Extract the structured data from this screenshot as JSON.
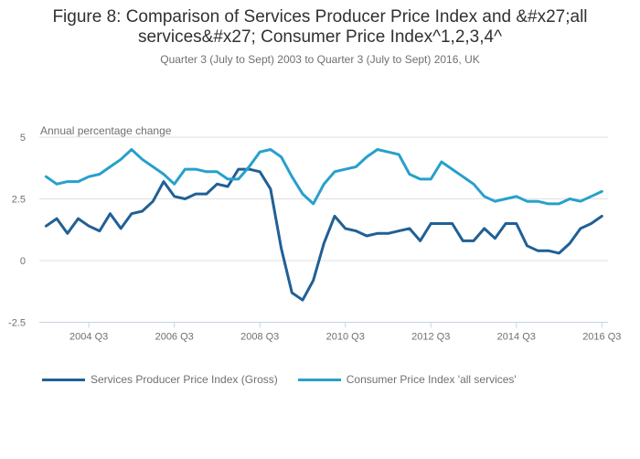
{
  "title": "Figure 8: Comparison of Services Producer Price Index and &#x27;all services&#x27; Consumer Price Index^1,2,3,4^",
  "subtitle": "Quarter 3 (July to Sept) 2003 to Quarter 3 (July to Sept) 2016, UK",
  "chart_data": {
    "type": "line",
    "title": "Figure 8: Comparison of Services Producer Price Index and &#x27;all services&#x27; Consumer Price Index^1,2,3,4^",
    "subtitle": "Quarter 3 (July to Sept) 2003 to Quarter 3 (July to Sept) 2016, UK",
    "xlabel": "",
    "ylabel": "Annual percentage change",
    "x_start": "2003 Q3",
    "x_end": "2016 Q3",
    "x_tick_labels": [
      "2004 Q3",
      "2006 Q3",
      "2008 Q3",
      "2010 Q3",
      "2012 Q3",
      "2014 Q3",
      "2016 Q3"
    ],
    "x_tick_index": [
      4,
      12,
      20,
      28,
      36,
      44,
      52
    ],
    "y_ticks": [
      5,
      2.5,
      0,
      -2.5
    ],
    "y_tick_labels": [
      "5",
      "2.5",
      "0",
      "-2.5"
    ],
    "ylim": [
      -2.5,
      5
    ],
    "grid": true,
    "legend_position": "bottom-left",
    "x": [
      "2003 Q3",
      "2003 Q4",
      "2004 Q1",
      "2004 Q2",
      "2004 Q3",
      "2004 Q4",
      "2005 Q1",
      "2005 Q2",
      "2005 Q3",
      "2005 Q4",
      "2006 Q1",
      "2006 Q2",
      "2006 Q3",
      "2006 Q4",
      "2007 Q1",
      "2007 Q2",
      "2007 Q3",
      "2007 Q4",
      "2008 Q1",
      "2008 Q2",
      "2008 Q3",
      "2008 Q4",
      "2009 Q1",
      "2009 Q2",
      "2009 Q3",
      "2009 Q4",
      "2010 Q1",
      "2010 Q2",
      "2010 Q3",
      "2010 Q4",
      "2011 Q1",
      "2011 Q2",
      "2011 Q3",
      "2011 Q4",
      "2012 Q1",
      "2012 Q2",
      "2012 Q3",
      "2012 Q4",
      "2013 Q1",
      "2013 Q2",
      "2013 Q3",
      "2013 Q4",
      "2014 Q1",
      "2014 Q2",
      "2014 Q3",
      "2014 Q4",
      "2015 Q1",
      "2015 Q2",
      "2015 Q3",
      "2015 Q4",
      "2016 Q1",
      "2016 Q2",
      "2016 Q3"
    ],
    "series": [
      {
        "name": "Services Producer Price Index (Gross)",
        "color": "#206095",
        "values": [
          1.4,
          1.7,
          1.1,
          1.7,
          1.4,
          1.2,
          1.9,
          1.3,
          1.9,
          2.0,
          2.4,
          3.2,
          2.6,
          2.5,
          2.7,
          2.7,
          3.1,
          3.0,
          3.7,
          3.7,
          3.6,
          2.9,
          0.5,
          -1.3,
          -1.6,
          -0.8,
          0.7,
          1.8,
          1.3,
          1.2,
          1.0,
          1.1,
          1.1,
          1.2,
          1.3,
          0.8,
          1.5,
          1.5,
          1.5,
          0.8,
          0.8,
          1.3,
          0.9,
          1.5,
          1.5,
          0.6,
          0.4,
          0.4,
          0.3,
          0.7,
          1.3,
          1.5,
          1.8
        ]
      },
      {
        "name": "Consumer Price Index 'all services'",
        "color": "#27a0cc",
        "values": [
          3.4,
          3.1,
          3.2,
          3.2,
          3.4,
          3.5,
          3.8,
          4.1,
          4.5,
          4.1,
          3.8,
          3.5,
          3.1,
          3.7,
          3.7,
          3.6,
          3.6,
          3.3,
          3.3,
          3.8,
          4.4,
          4.5,
          4.2,
          3.4,
          2.7,
          2.3,
          3.1,
          3.6,
          3.7,
          3.8,
          4.2,
          4.5,
          4.4,
          4.3,
          3.5,
          3.3,
          3.3,
          4.0,
          3.7,
          3.4,
          3.1,
          2.6,
          2.4,
          2.5,
          2.6,
          2.4,
          2.4,
          2.3,
          2.3,
          2.5,
          2.4,
          2.6,
          2.8
        ]
      }
    ]
  },
  "colors": {
    "sppi": "#206095",
    "cpi": "#27a0cc",
    "gridline": "#e0e0e0",
    "axis": "#c8d3e6"
  }
}
